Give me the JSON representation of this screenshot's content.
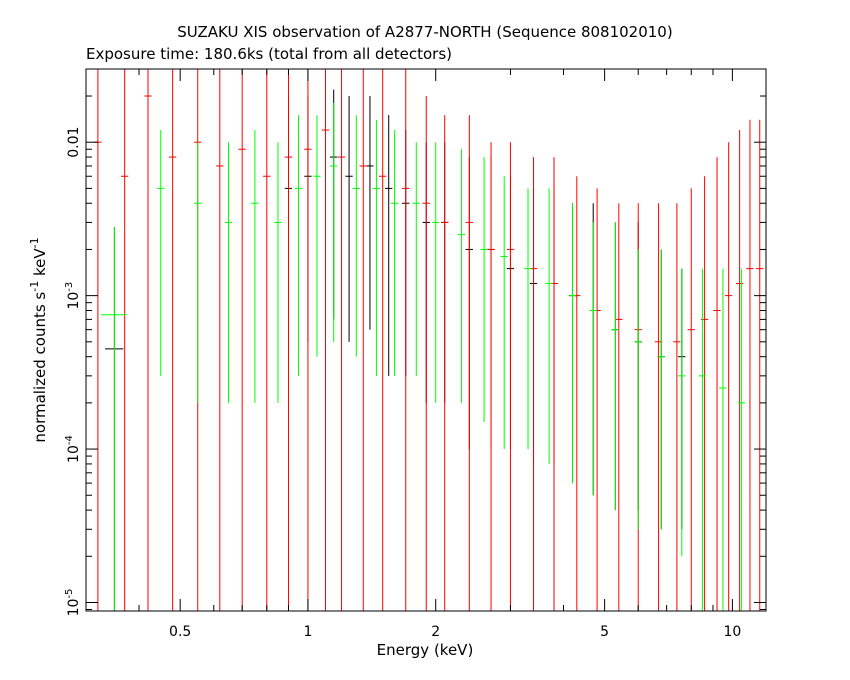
{
  "chart_data": {
    "type": "scatter",
    "title": "SUZAKU XIS observation of A2877-NORTH (Sequence 808102010)",
    "subtitle": "Exposure time: 180.6ks (total from all detectors)",
    "xlabel": "Energy (keV)",
    "ylabel": {
      "main": "normalized counts s",
      "exp1": "-1",
      "mid": " keV",
      "exp2": "-1"
    },
    "x_scale": "log",
    "y_scale": "log",
    "xlim": [
      0.3,
      12
    ],
    "ylim": [
      8.8e-06,
      0.03
    ],
    "x_ticks": [
      {
        "value": 0.5,
        "label": "0.5"
      },
      {
        "value": 1,
        "label": "1"
      },
      {
        "value": 2,
        "label": "2"
      },
      {
        "value": 5,
        "label": "5"
      },
      {
        "value": 10,
        "label": "10"
      }
    ],
    "y_ticks": [
      {
        "value": 1e-05,
        "base": "10",
        "exp": "-5"
      },
      {
        "value": 0.0001,
        "base": "10",
        "exp": "-4"
      },
      {
        "value": 0.001,
        "base": "10",
        "exp": "-3"
      },
      {
        "value": 0.01,
        "base": "0.01",
        "exp": ""
      }
    ],
    "grid": false,
    "colors": {
      "black": "#000000",
      "red": "#ff0000",
      "green": "#00ff00"
    },
    "series": [
      {
        "color": "#000000",
        "points": [
          [
            0.35,
            0.00045,
            0.05,
            8.8e-06,
            0.0028
          ],
          [
            0.9,
            0.005,
            0.02,
            0.0004,
            0.02
          ],
          [
            1.0,
            0.006,
            0.02,
            0.0005,
            0.02
          ],
          [
            1.15,
            0.008,
            0.02,
            0.0007,
            0.022
          ],
          [
            1.25,
            0.006,
            0.02,
            0.0005,
            0.02
          ],
          [
            1.4,
            0.007,
            0.02,
            0.0006,
            0.02
          ],
          [
            1.55,
            0.005,
            0.02,
            0.0003,
            0.015
          ],
          [
            1.7,
            0.004,
            0.02,
            0.0003,
            0.012
          ],
          [
            1.9,
            0.003,
            0.02,
            0.0002,
            0.01
          ],
          [
            2.1,
            0.003,
            0.02,
            0.0002,
            0.01
          ],
          [
            2.4,
            0.002,
            0.02,
            0.0001,
            0.008
          ],
          [
            2.7,
            0.002,
            0.02,
            0.0001,
            0.008
          ],
          [
            3.0,
            0.0015,
            0.02,
            0.0001,
            0.006
          ],
          [
            3.4,
            0.0012,
            0.02,
            8e-05,
            0.005
          ],
          [
            3.8,
            0.0012,
            0.02,
            8e-05,
            0.005
          ],
          [
            4.2,
            0.001,
            0.02,
            6e-05,
            0.004
          ],
          [
            4.7,
            0.0008,
            0.02,
            5e-05,
            0.004
          ],
          [
            5.3,
            0.0006,
            0.02,
            4e-05,
            0.003
          ],
          [
            6.0,
            0.0005,
            0.02,
            4e-05,
            0.003
          ],
          [
            6.8,
            0.0004,
            0.02,
            3e-05,
            0.002
          ],
          [
            7.6,
            0.0004,
            0.02,
            3e-05,
            0.0015
          ]
        ]
      },
      {
        "color": "#ff0000",
        "points": [
          [
            0.32,
            0.01,
            0.02,
            8.8e-06,
            0.03
          ],
          [
            0.37,
            0.006,
            0.02,
            8.8e-06,
            0.03
          ],
          [
            0.42,
            0.02,
            0.02,
            8.8e-06,
            0.03
          ],
          [
            0.48,
            0.008,
            0.02,
            8.8e-06,
            0.03
          ],
          [
            0.55,
            0.01,
            0.02,
            8.8e-06,
            0.03
          ],
          [
            0.62,
            0.007,
            0.02,
            8.8e-06,
            0.03
          ],
          [
            0.7,
            0.009,
            0.02,
            8.8e-06,
            0.03
          ],
          [
            0.8,
            0.006,
            0.02,
            8.8e-06,
            0.03
          ],
          [
            0.9,
            0.008,
            0.02,
            8.8e-06,
            0.03
          ],
          [
            1.0,
            0.009,
            0.02,
            8.8e-06,
            0.03
          ],
          [
            1.1,
            0.012,
            0.02,
            8.8e-06,
            0.03
          ],
          [
            1.2,
            0.008,
            0.02,
            8.8e-06,
            0.03
          ],
          [
            1.35,
            0.007,
            0.02,
            8.8e-06,
            0.03
          ],
          [
            1.5,
            0.006,
            0.02,
            8.8e-06,
            0.03
          ],
          [
            1.7,
            0.005,
            0.02,
            8.8e-06,
            0.03
          ],
          [
            1.9,
            0.004,
            0.02,
            8.8e-06,
            0.02
          ],
          [
            2.1,
            0.003,
            0.02,
            8.8e-06,
            0.015
          ],
          [
            2.4,
            0.003,
            0.02,
            8.8e-06,
            0.015
          ],
          [
            2.7,
            0.002,
            0.02,
            8.8e-06,
            0.01
          ],
          [
            3.0,
            0.002,
            0.02,
            8.8e-06,
            0.01
          ],
          [
            3.4,
            0.0015,
            0.02,
            8.8e-06,
            0.008
          ],
          [
            3.8,
            0.0012,
            0.02,
            8.8e-06,
            0.008
          ],
          [
            4.3,
            0.001,
            0.02,
            8.8e-06,
            0.006
          ],
          [
            4.8,
            0.0008,
            0.02,
            8.8e-06,
            0.005
          ],
          [
            5.4,
            0.0007,
            0.02,
            8.8e-06,
            0.004
          ],
          [
            6.0,
            0.0006,
            0.02,
            8.8e-06,
            0.004
          ],
          [
            6.7,
            0.0005,
            0.02,
            8.8e-06,
            0.004
          ],
          [
            7.4,
            0.0005,
            0.02,
            8.8e-06,
            0.004
          ],
          [
            8.0,
            0.0006,
            0.02,
            8.8e-06,
            0.005
          ],
          [
            8.6,
            0.0007,
            0.02,
            8.8e-06,
            0.006
          ],
          [
            9.2,
            0.0008,
            0.02,
            8.8e-06,
            0.008
          ],
          [
            9.8,
            0.001,
            0.02,
            8.8e-06,
            0.01
          ],
          [
            10.4,
            0.0012,
            0.02,
            8.8e-06,
            0.012
          ],
          [
            11.0,
            0.0015,
            0.02,
            8.8e-06,
            0.014
          ],
          [
            11.6,
            0.0015,
            0.02,
            8.8e-06,
            0.014
          ]
        ]
      },
      {
        "color": "#00ff00",
        "points": [
          [
            0.35,
            0.00075,
            0.07,
            8.8e-06,
            0.0028
          ],
          [
            0.45,
            0.005,
            0.02,
            0.0003,
            0.012
          ],
          [
            0.55,
            0.004,
            0.02,
            0.0002,
            0.01
          ],
          [
            0.65,
            0.003,
            0.02,
            0.0002,
            0.01
          ],
          [
            0.75,
            0.004,
            0.02,
            0.0002,
            0.012
          ],
          [
            0.85,
            0.003,
            0.02,
            0.0002,
            0.01
          ],
          [
            0.95,
            0.005,
            0.02,
            0.0003,
            0.015
          ],
          [
            1.05,
            0.006,
            0.02,
            0.0004,
            0.015
          ],
          [
            1.15,
            0.007,
            0.02,
            0.0005,
            0.018
          ],
          [
            1.3,
            0.005,
            0.02,
            0.0004,
            0.015
          ],
          [
            1.45,
            0.005,
            0.02,
            0.0003,
            0.014
          ],
          [
            1.6,
            0.004,
            0.02,
            0.0003,
            0.012
          ],
          [
            1.8,
            0.004,
            0.02,
            0.0003,
            0.01
          ],
          [
            2.0,
            0.003,
            0.02,
            0.0002,
            0.01
          ],
          [
            2.3,
            0.0025,
            0.02,
            0.0002,
            0.009
          ],
          [
            2.6,
            0.002,
            0.02,
            0.00015,
            0.008
          ],
          [
            2.9,
            0.0018,
            0.02,
            0.0001,
            0.006
          ],
          [
            3.3,
            0.0015,
            0.02,
            0.0001,
            0.005
          ],
          [
            3.7,
            0.0012,
            0.02,
            8e-05,
            0.005
          ],
          [
            4.2,
            0.001,
            0.02,
            6e-05,
            0.004
          ],
          [
            4.7,
            0.0008,
            0.02,
            5e-05,
            0.003
          ],
          [
            5.3,
            0.0006,
            0.02,
            4e-05,
            0.003
          ],
          [
            6.0,
            0.0005,
            0.02,
            3e-05,
            0.002
          ],
          [
            6.8,
            0.0004,
            0.02,
            3e-05,
            0.002
          ],
          [
            7.6,
            0.0003,
            0.02,
            2e-05,
            0.0015
          ],
          [
            8.5,
            0.0003,
            0.02,
            8.8e-06,
            0.0015
          ],
          [
            9.5,
            0.00025,
            0.02,
            8.8e-06,
            0.0015
          ],
          [
            10.5,
            0.0002,
            0.02,
            8.8e-06,
            0.0015
          ]
        ]
      }
    ]
  }
}
